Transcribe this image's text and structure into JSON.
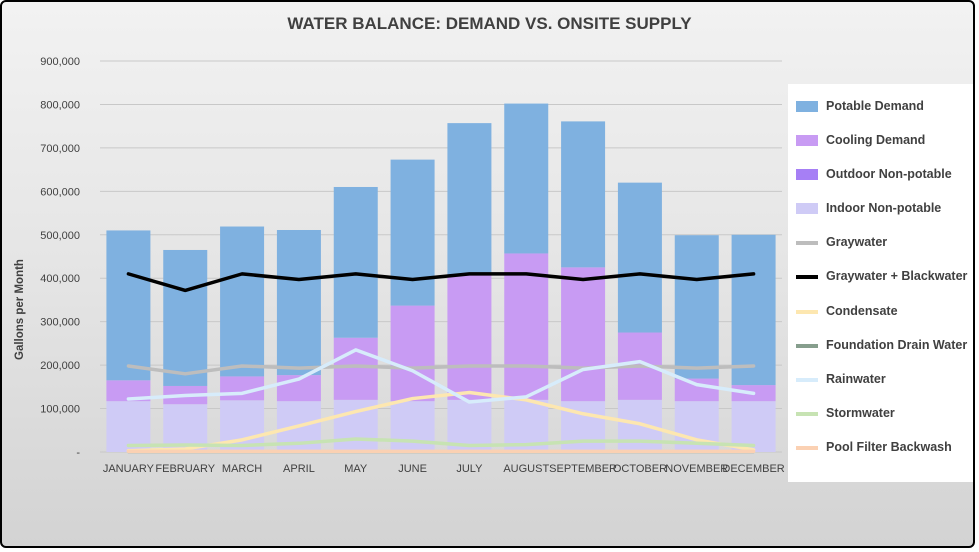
{
  "chart_data": {
    "type": "bar",
    "title": "WATER BALANCE: DEMAND VS. ONSITE SUPPLY",
    "ylabel": "Gallons per Month",
    "xlabel": "",
    "ylim": [
      0,
      900000
    ],
    "yticks": [
      0,
      100000,
      200000,
      300000,
      400000,
      500000,
      600000,
      700000,
      800000,
      900000
    ],
    "ytick_labels": [
      "-",
      "100,000",
      "200,000",
      "300,000",
      "400,000",
      "500,000",
      "600,000",
      "700,000",
      "800,000",
      "900,000"
    ],
    "grid": true,
    "legend_position": "right",
    "categories": [
      "JANUARY",
      "FEBRUARY",
      "MARCH",
      "APRIL",
      "MAY",
      "JUNE",
      "JULY",
      "AUGUST",
      "SEPTEMBER",
      "OCTOBER",
      "NOVEMBER",
      "DECEMBER"
    ],
    "stacked_series": [
      {
        "name": "Indoor Non-potable",
        "color": "#cfcbf6",
        "values": [
          117000,
          110000,
          119000,
          117000,
          120000,
          117000,
          120000,
          120000,
          117000,
          120000,
          117000,
          117000
        ]
      },
      {
        "name": "Outdoor Non-potable",
        "color": "#a67ff5",
        "values": [
          0,
          0,
          0,
          0,
          0,
          0,
          0,
          0,
          0,
          0,
          0,
          0
        ]
      },
      {
        "name": "Cooling Demand",
        "color": "#c89bf3",
        "values": [
          48000,
          42000,
          55000,
          60000,
          143000,
          220000,
          287000,
          337000,
          308000,
          155000,
          52000,
          37000
        ]
      },
      {
        "name": "Potable Demand",
        "color": "#7fb1e0",
        "values": [
          345000,
          313000,
          345000,
          334000,
          347000,
          336000,
          350000,
          345000,
          336000,
          345000,
          330000,
          346000
        ]
      }
    ],
    "line_series": [
      {
        "name": "Graywater",
        "color": "#bdbdbd",
        "width": 3.5,
        "values": [
          198000,
          180000,
          198000,
          193000,
          198000,
          193000,
          198000,
          198000,
          193000,
          198000,
          193000,
          198000
        ]
      },
      {
        "name": "Graywater + Blackwater",
        "color": "#000000",
        "width": 3.5,
        "values": [
          410000,
          372000,
          410000,
          397000,
          410000,
          397000,
          410000,
          410000,
          397000,
          410000,
          397000,
          410000
        ]
      },
      {
        "name": "Condensate",
        "color": "#fde7b0",
        "width": 3.5,
        "values": [
          3000,
          7000,
          28000,
          60000,
          93000,
          123000,
          137000,
          120000,
          88000,
          65000,
          28000,
          5000
        ]
      },
      {
        "name": "Foundation Drain Water",
        "color": "#869e8d",
        "width": 2.5,
        "values": [
          0,
          0,
          0,
          0,
          0,
          0,
          0,
          0,
          0,
          0,
          0,
          0
        ]
      },
      {
        "name": "Rainwater",
        "color": "#d7ecfb",
        "width": 3.5,
        "values": [
          122000,
          130000,
          135000,
          168000,
          235000,
          187000,
          115000,
          127000,
          190000,
          208000,
          155000,
          135000
        ]
      },
      {
        "name": "Stormwater",
        "color": "#c7e3b3",
        "width": 3.5,
        "values": [
          15000,
          16000,
          15000,
          20000,
          30000,
          25000,
          15000,
          17000,
          25000,
          25000,
          20000,
          15000
        ]
      },
      {
        "name": "Pool Filter Backwash",
        "color": "#fbd1b3",
        "width": 3.5,
        "values": [
          1500,
          1500,
          1500,
          1500,
          1500,
          1500,
          1500,
          1500,
          1500,
          1500,
          1500,
          1500
        ]
      }
    ],
    "legend_entries": [
      {
        "name": "Potable Demand",
        "color": "#7fb1e0",
        "kind": "box"
      },
      {
        "name": "Cooling Demand",
        "color": "#c89bf3",
        "kind": "box"
      },
      {
        "name": "Outdoor Non-potable",
        "color": "#a67ff5",
        "kind": "box"
      },
      {
        "name": "Indoor Non-potable",
        "color": "#cfcbf6",
        "kind": "box"
      },
      {
        "name": "Graywater",
        "color": "#bdbdbd",
        "kind": "line"
      },
      {
        "name": "Graywater + Blackwater",
        "color": "#000000",
        "kind": "line"
      },
      {
        "name": "Condensate",
        "color": "#fde7b0",
        "kind": "line"
      },
      {
        "name": "Foundation Drain Water",
        "color": "#869e8d",
        "kind": "line"
      },
      {
        "name": "Rainwater",
        "color": "#d7ecfb",
        "kind": "line"
      },
      {
        "name": "Stormwater",
        "color": "#c7e3b3",
        "kind": "line"
      },
      {
        "name": "Pool Filter Backwash",
        "color": "#fbd1b3",
        "kind": "line"
      }
    ]
  }
}
